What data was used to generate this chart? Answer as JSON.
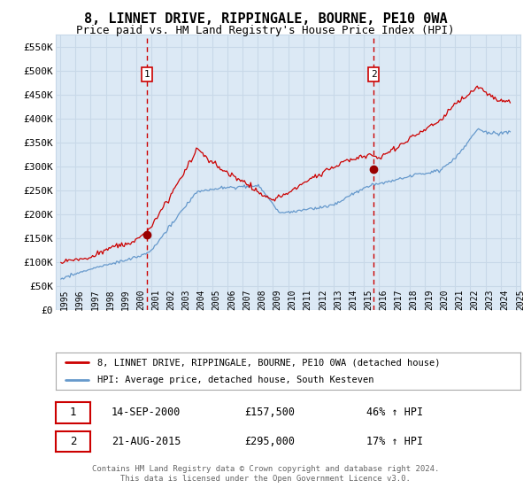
{
  "title": "8, LINNET DRIVE, RIPPINGALE, BOURNE, PE10 0WA",
  "subtitle": "Price paid vs. HM Land Registry's House Price Index (HPI)",
  "ylabel_ticks": [
    "£0",
    "£50K",
    "£100K",
    "£150K",
    "£200K",
    "£250K",
    "£300K",
    "£350K",
    "£400K",
    "£450K",
    "£500K",
    "£550K"
  ],
  "ytick_values": [
    0,
    50000,
    100000,
    150000,
    200000,
    250000,
    300000,
    350000,
    400000,
    450000,
    500000,
    550000
  ],
  "ylim": [
    0,
    575000
  ],
  "xlim_left": 1994.7,
  "xlim_right": 2025.3,
  "sale1_date": "14-SEP-2000",
  "sale1_price": 157500,
  "sale1_price_str": "£157,500",
  "sale1_pct": "46%",
  "sale1_x": 2000.71,
  "sale2_date": "21-AUG-2015",
  "sale2_price": 295000,
  "sale2_price_str": "£295,000",
  "sale2_pct": "17%",
  "sale2_x": 2015.64,
  "red_line_color": "#cc0000",
  "blue_line_color": "#6699cc",
  "vline_color": "#cc0000",
  "dot_color": "#990000",
  "legend1": "8, LINNET DRIVE, RIPPINGALE, BOURNE, PE10 0WA (detached house)",
  "legend2": "HPI: Average price, detached house, South Kesteven",
  "footer": "Contains HM Land Registry data © Crown copyright and database right 2024.\nThis data is licensed under the Open Government Licence v3.0.",
  "plot_bg_color": "#dce9f5",
  "grid_color": "#c8d8e8",
  "title_fontsize": 11,
  "subtitle_fontsize": 9
}
